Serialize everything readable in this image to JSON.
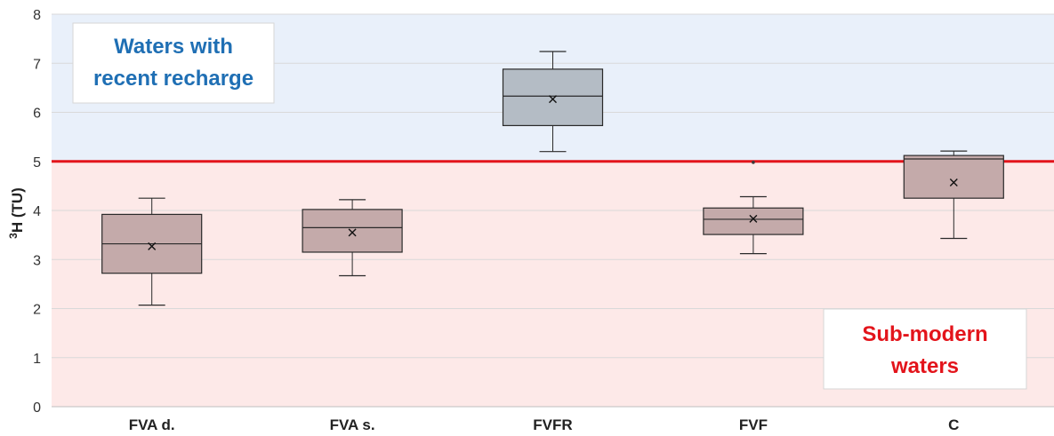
{
  "chart_data": {
    "type": "boxplot",
    "ylabel_sup": "3",
    "ylabel": "H (TU)",
    "ylim": [
      0,
      8
    ],
    "yticks": [
      "0",
      "1",
      "2",
      "3",
      "4",
      "5",
      "6",
      "7",
      "8"
    ],
    "threshold": {
      "value": 5,
      "color": "#e3141b"
    },
    "regions": [
      {
        "from": 5,
        "to": 8,
        "color": "#e9f0fa"
      },
      {
        "from": 0,
        "to": 5,
        "color": "#fde9e8"
      }
    ],
    "categories": [
      "FVA d.",
      "FVA s.",
      "FVFR",
      "FVF",
      "C"
    ],
    "boxes": [
      {
        "min": 2.07,
        "q1": 2.72,
        "median": 3.32,
        "q3": 3.92,
        "max": 4.25,
        "mean": 3.27,
        "outliers": [],
        "fill": "#c4aaaa"
      },
      {
        "min": 2.67,
        "q1": 3.15,
        "median": 3.65,
        "q3": 4.02,
        "max": 4.22,
        "mean": 3.55,
        "outliers": [],
        "fill": "#c4aaaa"
      },
      {
        "min": 5.2,
        "q1": 5.73,
        "median": 6.33,
        "q3": 6.88,
        "max": 7.24,
        "mean": 6.27,
        "outliers": [],
        "fill": "#b4bcc5"
      },
      {
        "min": 3.12,
        "q1": 3.51,
        "median": 3.82,
        "q3": 4.05,
        "max": 4.28,
        "mean": 3.83,
        "outliers": [
          4.98
        ],
        "fill": "#c4aaaa"
      },
      {
        "min": 3.43,
        "q1": 4.25,
        "median": 5.05,
        "q3": 5.12,
        "max": 5.21,
        "mean": 4.57,
        "outliers": [],
        "fill": "#c4aaaa"
      }
    ],
    "annotations": {
      "upper": {
        "lines": [
          "Waters with",
          "recent recharge"
        ],
        "color": "#1f6fb4"
      },
      "lower": {
        "lines": [
          "Sub-modern",
          "waters"
        ],
        "color": "#e3141b"
      }
    }
  }
}
